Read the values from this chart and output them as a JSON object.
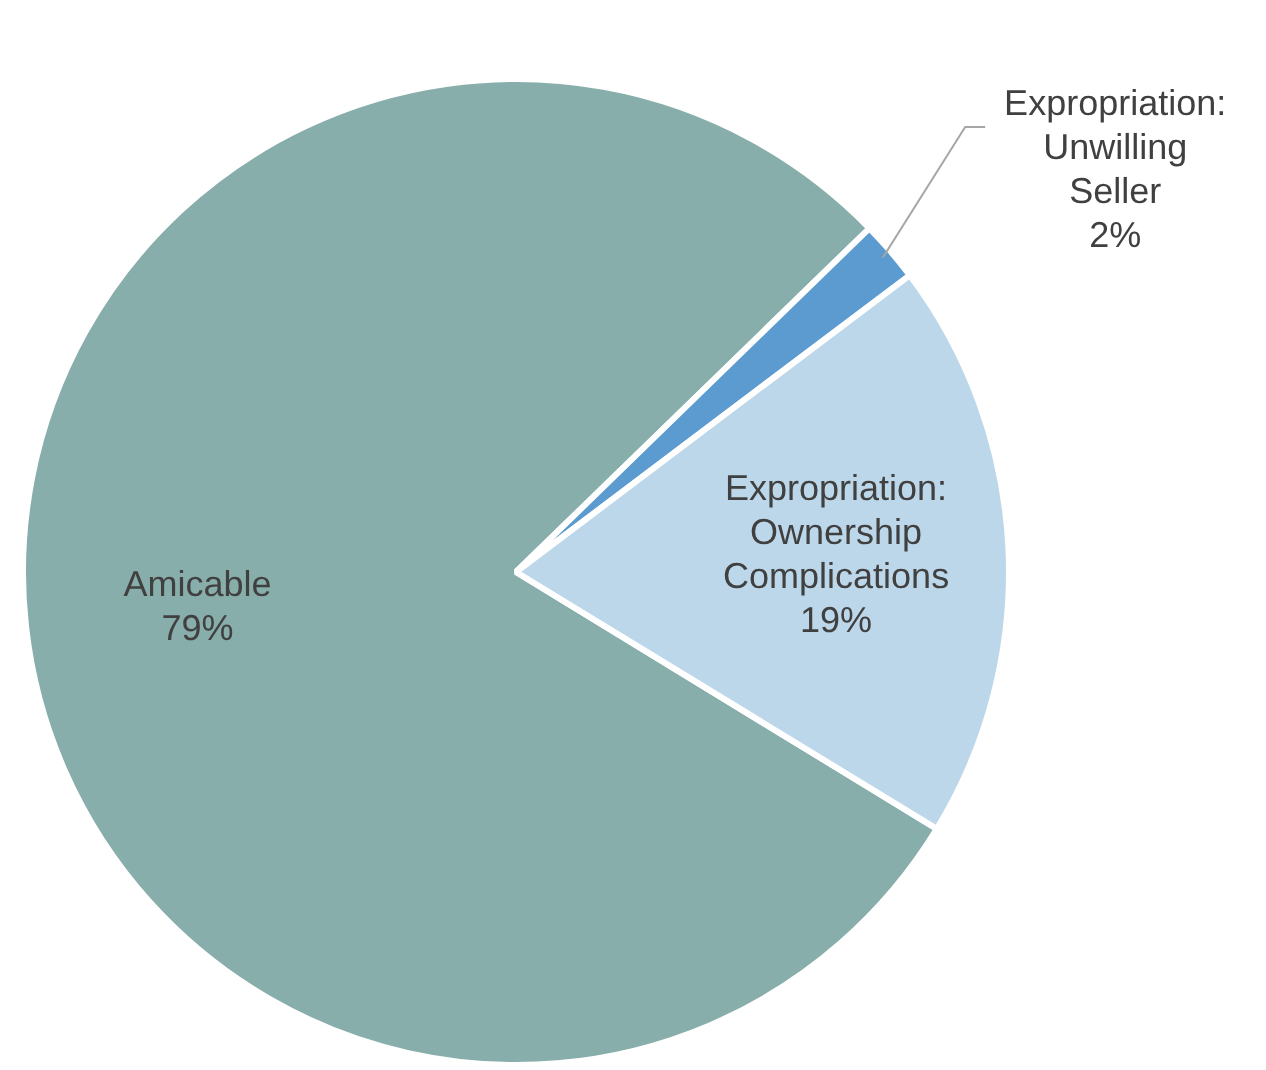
{
  "chart_data": {
    "type": "pie",
    "categories": [
      "Amicable",
      "Expropriation: Unwilling Seller",
      "Expropriation: Ownership Complications"
    ],
    "values": [
      79,
      2,
      19
    ],
    "colors": [
      "#87aeaa",
      "#5b9bd0",
      "#bdd7ea"
    ],
    "value_labels": [
      "79%",
      "2%",
      "19%"
    ],
    "legend": false
  }
}
